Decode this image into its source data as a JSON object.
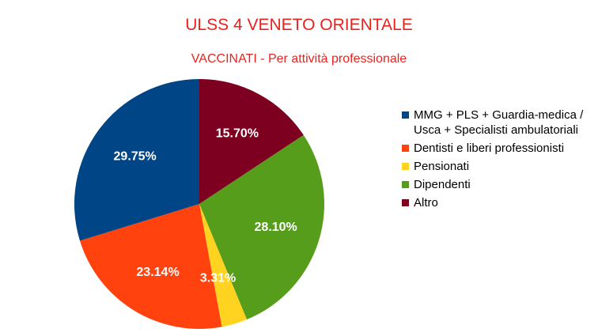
{
  "chart_data": {
    "type": "pie",
    "title": "ULSS 4 VENETO ORIENTALE",
    "subtitle": "VACCINATI - Per attività professionale",
    "legend_position": "right",
    "slices": [
      {
        "label": "Altro",
        "value": 15.7,
        "value_label": "15.70%",
        "color": "#7e0021"
      },
      {
        "label": "Dipendenti",
        "value": 28.1,
        "value_label": "28.10%",
        "color": "#579d1c"
      },
      {
        "label": "Pensionati",
        "value": 3.31,
        "value_label": "3.31%",
        "color": "#ffd320"
      },
      {
        "label": "Dentisti e liberi professionisti",
        "value": 23.14,
        "value_label": "23.14%",
        "color": "#ff420e"
      },
      {
        "label": "MMG + PLS + Guardia-medica / Usca + Specialisti ambulatoriali",
        "value": 29.75,
        "value_label": "29.75%",
        "color": "#004586"
      }
    ],
    "legend": [
      {
        "label": "MMG + PLS + Guardia-medica / Usca + Specialisti ambulatoriali",
        "color": "#004586"
      },
      {
        "label": "Dentisti e liberi professionisti",
        "color": "#ff420e"
      },
      {
        "label": "Pensionati",
        "color": "#ffd320"
      },
      {
        "label": "Dipendenti",
        "color": "#579d1c"
      },
      {
        "label": "Altro",
        "color": "#7e0021"
      }
    ]
  }
}
